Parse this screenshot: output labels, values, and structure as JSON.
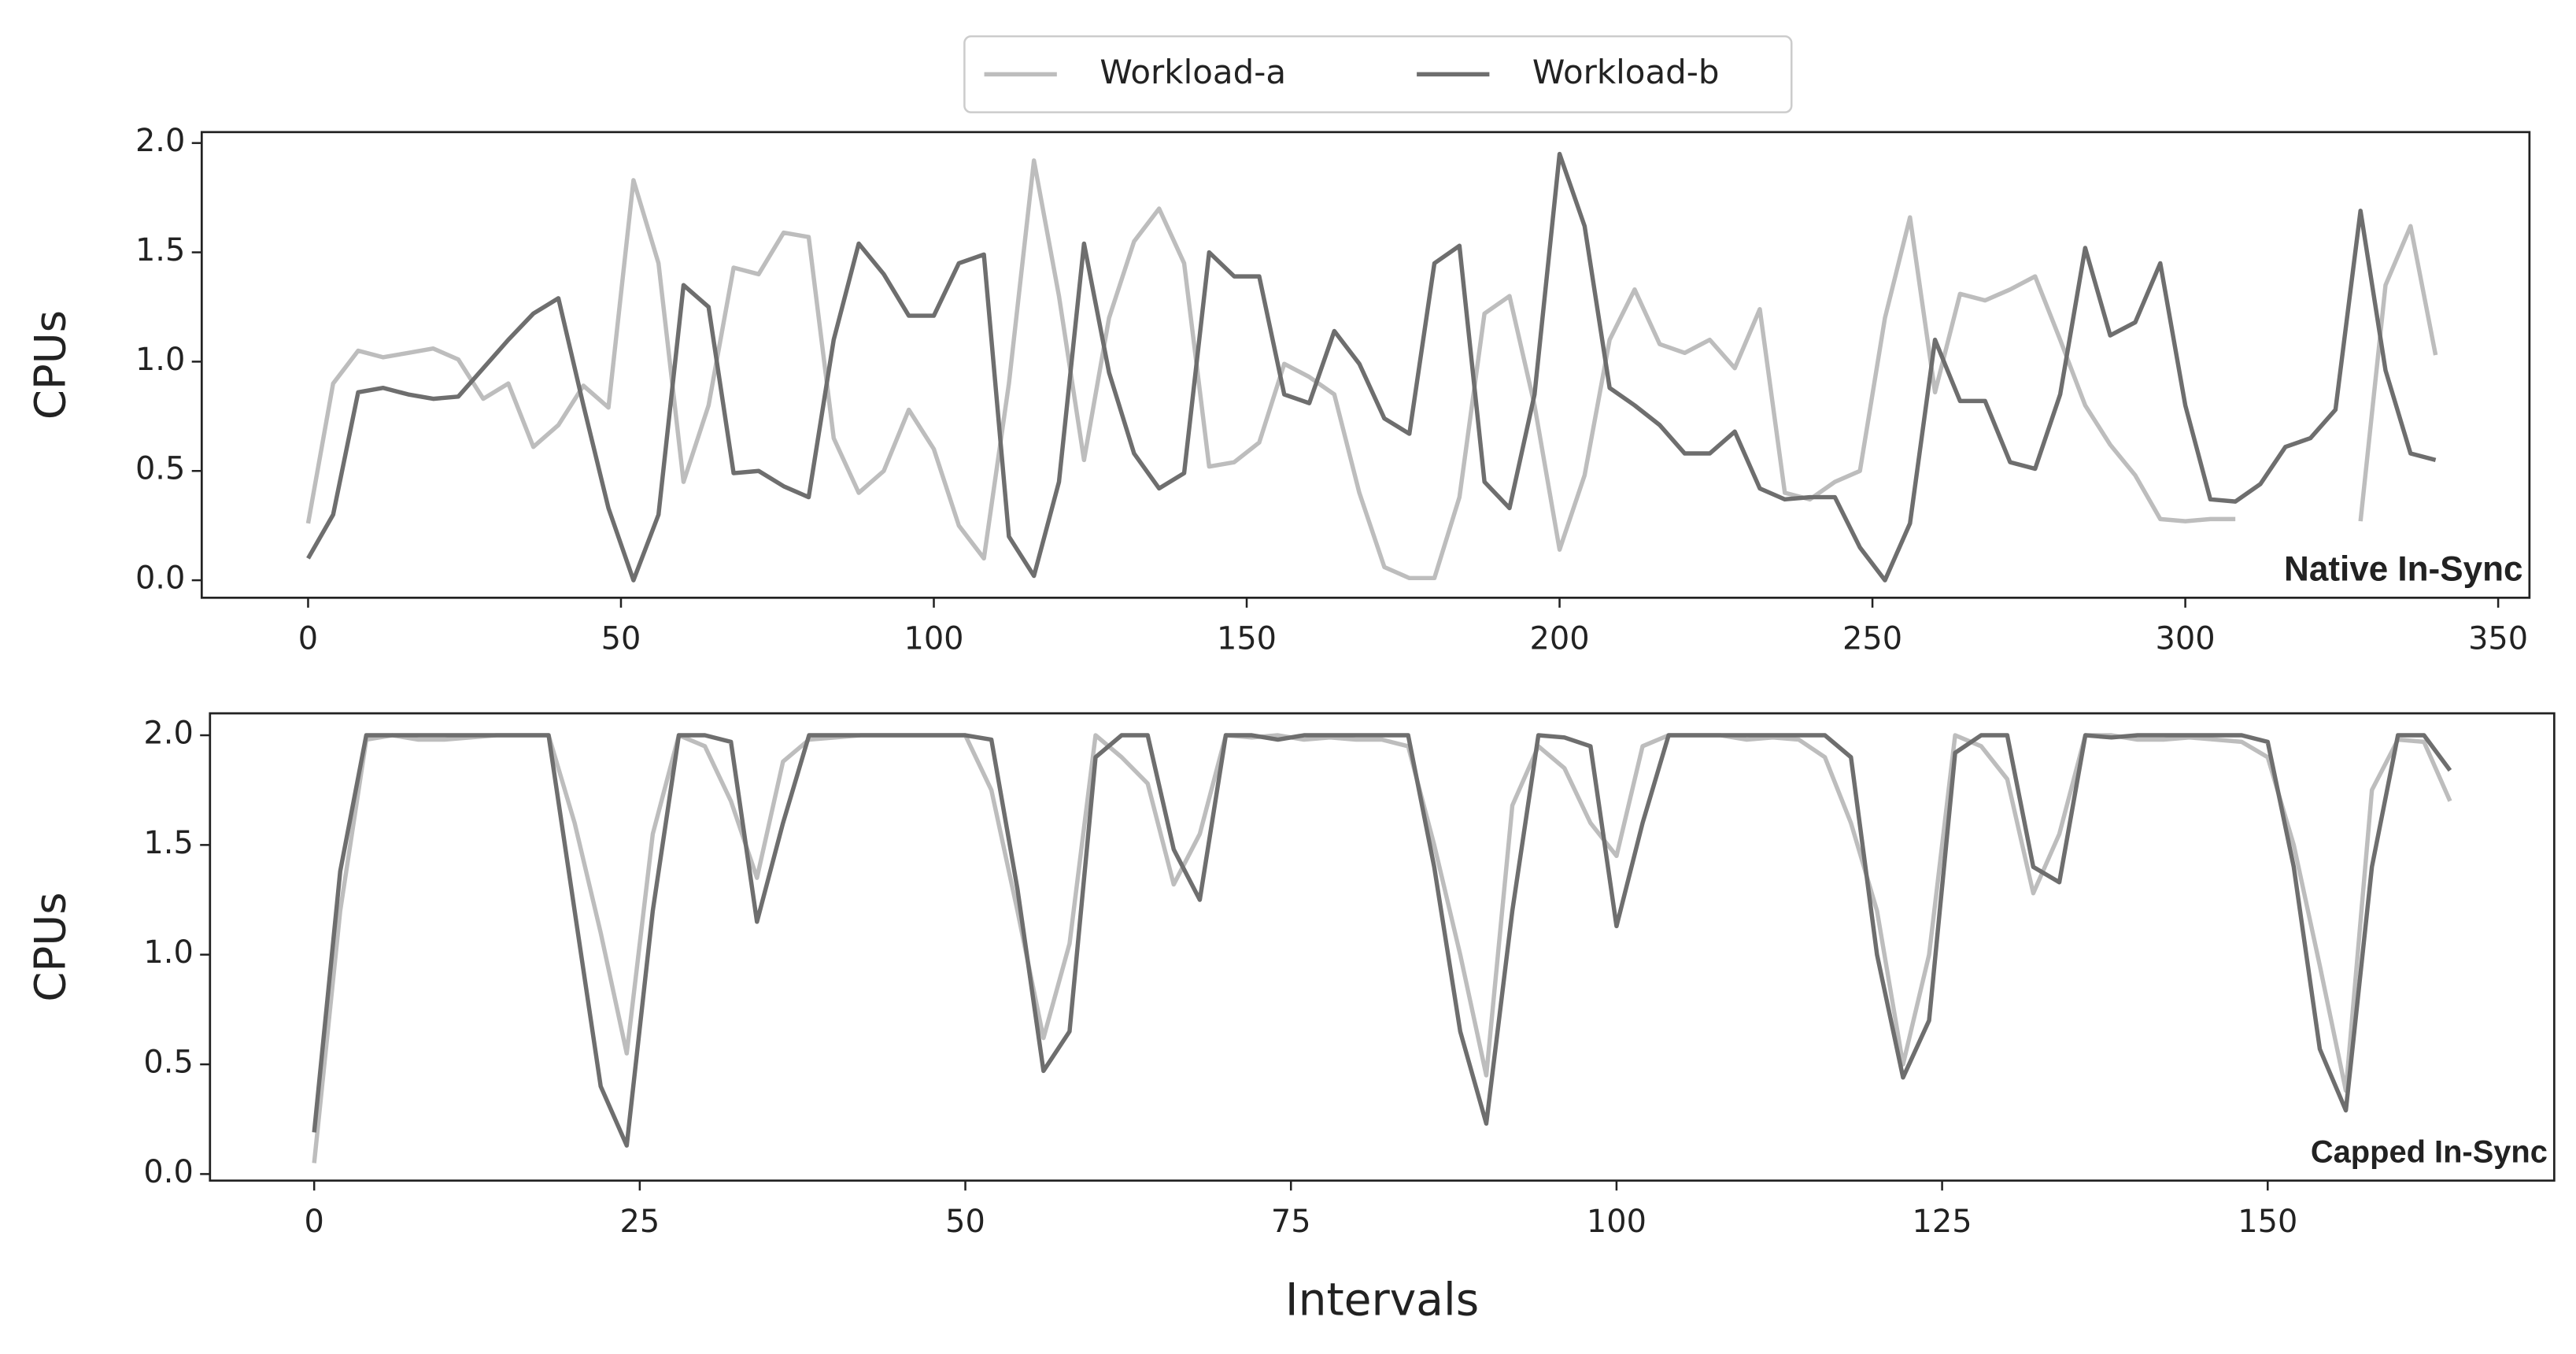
{
  "chart_data": [
    {
      "type": "line",
      "annotation": "Native In-Sync",
      "ylabel": "CPUs",
      "x": [
        0,
        4,
        8,
        12,
        16,
        20,
        24,
        28,
        32,
        36,
        40,
        44,
        48,
        52,
        56,
        60,
        64,
        68,
        72,
        76,
        80,
        84,
        88,
        92,
        96,
        100,
        104,
        108,
        112,
        116,
        120,
        124,
        128,
        132,
        136,
        140,
        144,
        148,
        152,
        156,
        160,
        164,
        168,
        172,
        176,
        180,
        184,
        188,
        192,
        196,
        200,
        204,
        208,
        212,
        216,
        220,
        224,
        228,
        232,
        236,
        240,
        244,
        248,
        252,
        256,
        260,
        264,
        268,
        272,
        276,
        280,
        284,
        288,
        292,
        296,
        300,
        304,
        308,
        312,
        316,
        320,
        324,
        328,
        332,
        336,
        340
      ],
      "series": [
        {
          "name": "Workload-a",
          "color": "#bdbdbd",
          "values": [
            0.26,
            0.9,
            1.05,
            1.02,
            1.04,
            1.06,
            1.01,
            0.83,
            0.9,
            0.61,
            0.71,
            0.89,
            0.79,
            1.83,
            1.45,
            0.45,
            0.8,
            1.43,
            1.4,
            1.59,
            1.57,
            0.65,
            0.4,
            0.5,
            0.78,
            0.6,
            0.25,
            0.1,
            0.9,
            1.92,
            1.3,
            0.55,
            1.2,
            1.55,
            1.7,
            1.45,
            0.52,
            0.54,
            0.63,
            0.99,
            0.93,
            0.85,
            0.4,
            0.06,
            0.01,
            0.01,
            0.38,
            1.22,
            1.3,
            0.8,
            0.14,
            0.48,
            1.1,
            1.33,
            1.08,
            1.04,
            1.1,
            0.97,
            1.24,
            0.4,
            0.37,
            0.45,
            0.5,
            1.2,
            1.66,
            0.86,
            1.31,
            1.28,
            1.33,
            1.39,
            1.1,
            0.8,
            0.62,
            0.48,
            0.28,
            0.27,
            0.28,
            0.28,
            null,
            null,
            null,
            null,
            0.27,
            1.35,
            1.62,
            1.03
          ]
        },
        {
          "name": "Workload-b",
          "color": "#6e6e6e",
          "values": [
            0.1,
            0.3,
            0.86,
            0.88,
            0.85,
            0.83,
            0.84,
            0.97,
            1.1,
            1.22,
            1.29,
            0.8,
            0.33,
            0.0,
            0.3,
            1.35,
            1.25,
            0.49,
            0.5,
            0.43,
            0.38,
            1.1,
            1.54,
            1.4,
            1.21,
            1.21,
            1.45,
            1.49,
            0.2,
            0.02,
            0.45,
            1.54,
            0.95,
            0.58,
            0.42,
            0.49,
            1.5,
            1.39,
            1.39,
            0.85,
            0.81,
            1.14,
            0.99,
            0.74,
            0.67,
            1.45,
            1.53,
            0.45,
            0.33,
            0.85,
            1.95,
            1.62,
            0.88,
            0.8,
            0.71,
            0.58,
            0.58,
            0.68,
            0.42,
            0.37,
            0.38,
            0.38,
            0.15,
            0.0,
            0.26,
            1.1,
            0.82,
            0.82,
            0.54,
            0.51,
            0.85,
            1.52,
            1.12,
            1.18,
            1.45,
            0.8,
            0.37,
            0.36,
            0.44,
            0.61,
            0.65,
            0.78,
            1.69,
            0.96,
            0.58,
            0.55
          ]
        }
      ],
      "xlim": [
        -17,
        355
      ],
      "xticks": [
        0,
        50,
        100,
        150,
        200,
        250,
        300,
        350
      ],
      "ylim": [
        -0.08,
        2.05
      ],
      "yticks": [
        {
          "value": 0,
          "label": "0.0"
        },
        {
          "value": 0.5,
          "label": "0.5"
        },
        {
          "value": 1,
          "label": "1.0"
        },
        {
          "value": 1.5,
          "label": "1.5"
        },
        {
          "value": 2,
          "label": "2.0"
        }
      ],
      "legend": "top-center"
    },
    {
      "type": "line",
      "annotation": "Capped In-Sync",
      "ylabel": "CPUs",
      "xlabel": "Intervals",
      "x": [
        0,
        2,
        4,
        6,
        8,
        10,
        12,
        14,
        16,
        18,
        20,
        22,
        24,
        26,
        28,
        30,
        32,
        34,
        36,
        38,
        40,
        42,
        44,
        46,
        48,
        50,
        52,
        54,
        56,
        58,
        60,
        62,
        64,
        66,
        68,
        70,
        72,
        74,
        76,
        78,
        80,
        82,
        84,
        86,
        88,
        90,
        92,
        94,
        96,
        98,
        100,
        102,
        104,
        106,
        108,
        110,
        112,
        114,
        116,
        118,
        120,
        122,
        124,
        126,
        128,
        130,
        132,
        134,
        136,
        138,
        140,
        142,
        144,
        146,
        148,
        150,
        152,
        154,
        156,
        158,
        160,
        162,
        164
      ],
      "series": [
        {
          "color": "#bdbdbd",
          "values": [
            0.05,
            1.2,
            1.98,
            2.0,
            1.98,
            1.98,
            1.99,
            2.0,
            2.0,
            2.0,
            1.6,
            1.1,
            0.55,
            1.55,
            2.0,
            1.95,
            1.7,
            1.35,
            1.88,
            1.98,
            1.99,
            2.0,
            2.0,
            2.0,
            2.0,
            2.0,
            1.75,
            1.2,
            0.62,
            1.05,
            2.0,
            1.9,
            1.78,
            1.32,
            1.55,
            2.0,
            1.99,
            2.0,
            1.98,
            1.99,
            1.98,
            1.98,
            1.95,
            1.5,
            1.0,
            0.45,
            1.68,
            1.95,
            1.85,
            1.6,
            1.45,
            1.95,
            2.0,
            2.0,
            2.0,
            1.98,
            1.99,
            1.98,
            1.9,
            1.6,
            1.2,
            0.5,
            1.0,
            2.0,
            1.95,
            1.8,
            1.28,
            1.55,
            2.0,
            2.0,
            1.98,
            1.98,
            1.99,
            1.98,
            1.97,
            1.9,
            1.5,
            0.95,
            0.38,
            1.75,
            1.98,
            1.97,
            1.7
          ]
        },
        {
          "color": "#6e6e6e",
          "values": [
            0.19,
            1.38,
            2.0,
            2.0,
            2.0,
            2.0,
            2.0,
            2.0,
            2.0,
            2.0,
            1.2,
            0.4,
            0.13,
            1.2,
            2.0,
            2.0,
            1.97,
            1.15,
            1.6,
            2.0,
            2.0,
            2.0,
            2.0,
            2.0,
            2.0,
            2.0,
            1.98,
            1.3,
            0.47,
            0.65,
            1.9,
            2.0,
            2.0,
            1.48,
            1.25,
            2.0,
            2.0,
            1.98,
            2.0,
            2.0,
            2.0,
            2.0,
            2.0,
            1.4,
            0.65,
            0.23,
            1.2,
            2.0,
            1.99,
            1.95,
            1.13,
            1.6,
            2.0,
            2.0,
            2.0,
            2.0,
            2.0,
            2.0,
            2.0,
            1.9,
            1.0,
            0.44,
            0.7,
            1.92,
            2.0,
            2.0,
            1.4,
            1.33,
            2.0,
            1.99,
            2.0,
            2.0,
            2.0,
            2.0,
            2.0,
            1.97,
            1.4,
            0.57,
            0.29,
            1.4,
            2.0,
            2.0,
            1.84
          ]
        }
      ],
      "xlim": [
        -8,
        172
      ],
      "xticks": [
        0,
        25,
        50,
        75,
        100,
        125,
        150
      ],
      "ylim": [
        -0.03,
        2.1
      ],
      "yticks": [
        {
          "value": 0,
          "label": "0.0"
        },
        {
          "value": 0.5,
          "label": "0.5"
        },
        {
          "value": 1,
          "label": "1.0"
        },
        {
          "value": 1.5,
          "label": "1.5"
        },
        {
          "value": 2,
          "label": "2.0"
        }
      ]
    }
  ]
}
